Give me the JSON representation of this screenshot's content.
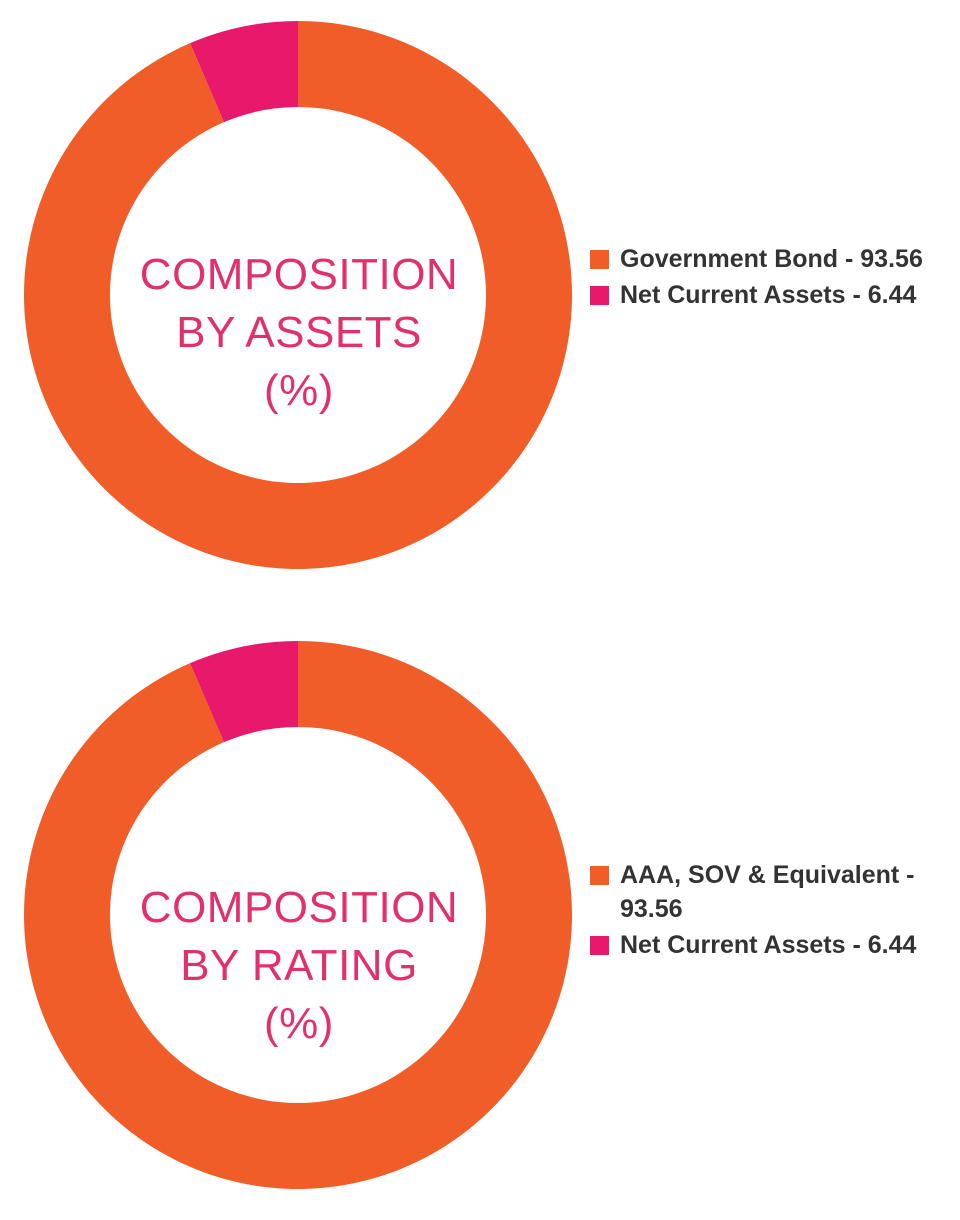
{
  "colors": {
    "government": "#f15d28",
    "net_current": "#e8186a",
    "center_text": "#e1306c",
    "legend_text": "#333333"
  },
  "chart_data": [
    {
      "type": "pie",
      "center_label": [
        "COMPOSITION",
        "BY ASSETS",
        "(%)"
      ],
      "series": [
        {
          "label": "Government Bond - 93.56",
          "value": 93.56,
          "color": "#f15d28"
        },
        {
          "label": "Net Current Assets - 6.44",
          "value": 6.44,
          "color": "#e8186a"
        }
      ],
      "legend_position": "right"
    },
    {
      "type": "pie",
      "center_label": [
        "COMPOSITION",
        "BY RATING",
        "(%)"
      ],
      "series": [
        {
          "label": "AAA, SOV & Equivalent - 93.56",
          "value": 93.56,
          "color": "#f15d28"
        },
        {
          "label": "Net Current Assets - 6.44",
          "value": 6.44,
          "color": "#e8186a"
        }
      ],
      "legend_position": "right"
    }
  ]
}
